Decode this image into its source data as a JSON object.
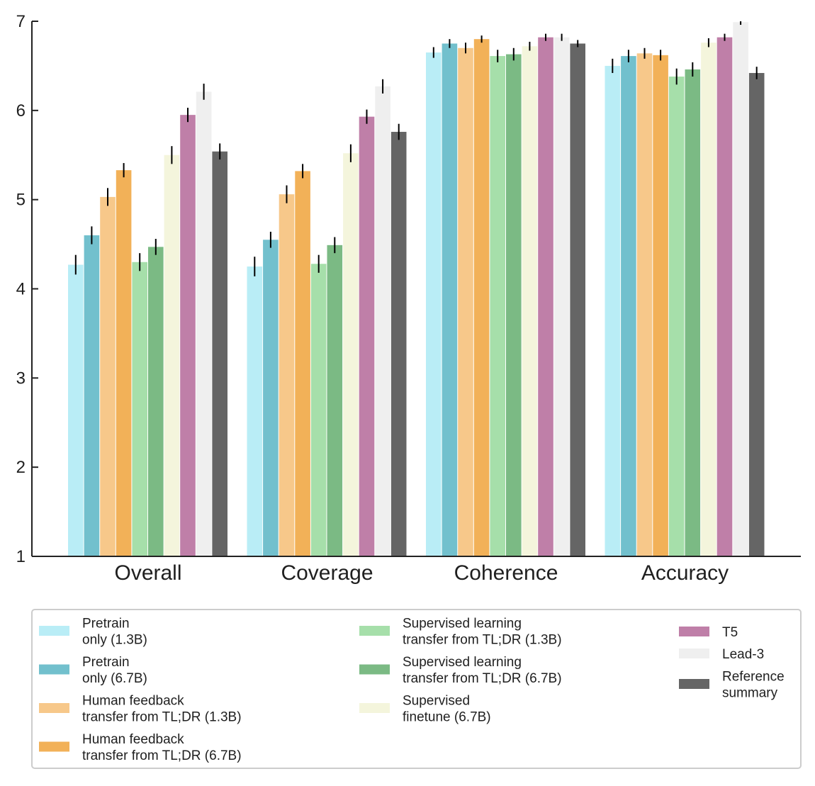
{
  "chart_data": {
    "type": "bar",
    "title": "",
    "xlabel": "",
    "ylabel": "",
    "ylim": [
      1,
      7
    ],
    "yticks": [
      1,
      2,
      3,
      4,
      5,
      6,
      7
    ],
    "grid": false,
    "legend_position": "bottom",
    "categories": [
      "Overall",
      "Coverage",
      "Coherence",
      "Accuracy"
    ],
    "series": [
      {
        "name": "Pretrain\nonly (1.3B)",
        "color": "#b9edf6",
        "values": [
          4.27,
          4.25,
          6.65,
          6.5
        ],
        "errors": [
          0.11,
          0.11,
          0.06,
          0.08
        ]
      },
      {
        "name": "Pretrain\nonly (6.7B)",
        "color": "#72c0cd",
        "values": [
          4.6,
          4.55,
          6.75,
          6.61
        ],
        "errors": [
          0.1,
          0.09,
          0.05,
          0.07
        ]
      },
      {
        "name": "Human feedback\ntransfer from TL;DR (1.3B)",
        "color": "#f7c88a",
        "values": [
          5.03,
          5.06,
          6.7,
          6.64
        ],
        "errors": [
          0.1,
          0.1,
          0.06,
          0.06
        ]
      },
      {
        "name": "Human feedback\ntransfer from TL;DR (6.7B)",
        "color": "#f2b158",
        "values": [
          5.33,
          5.32,
          6.8,
          6.62
        ],
        "errors": [
          0.08,
          0.08,
          0.04,
          0.06
        ]
      },
      {
        "name": "Supervised learning\ntransfer from TL;DR (1.3B)",
        "color": "#a6dfaa",
        "values": [
          4.3,
          4.28,
          6.61,
          6.38
        ],
        "errors": [
          0.1,
          0.1,
          0.07,
          0.09
        ]
      },
      {
        "name": "Supervised learning\ntransfer from TL;DR (6.7B)",
        "color": "#7bba84",
        "values": [
          4.47,
          4.49,
          6.63,
          6.46
        ],
        "errors": [
          0.09,
          0.09,
          0.07,
          0.08
        ]
      },
      {
        "name": "Supervised\nfinetune (6.7B)",
        "color": "#f4f5dc",
        "values": [
          5.5,
          5.52,
          6.72,
          6.76
        ],
        "errors": [
          0.1,
          0.1,
          0.05,
          0.05
        ]
      },
      {
        "name": "T5",
        "color": "#bf7fa8",
        "values": [
          5.95,
          5.93,
          6.82,
          6.82
        ],
        "errors": [
          0.08,
          0.08,
          0.04,
          0.04
        ]
      },
      {
        "name": "Lead-3",
        "color": "#efefef",
        "values": [
          6.21,
          6.27,
          6.82,
          6.99
        ],
        "errors": [
          0.09,
          0.08,
          0.04,
          0.03
        ]
      },
      {
        "name": "Reference\nsummary",
        "color": "#656565",
        "values": [
          5.54,
          5.76,
          6.75,
          6.42
        ],
        "errors": [
          0.09,
          0.09,
          0.04,
          0.07
        ]
      }
    ]
  }
}
